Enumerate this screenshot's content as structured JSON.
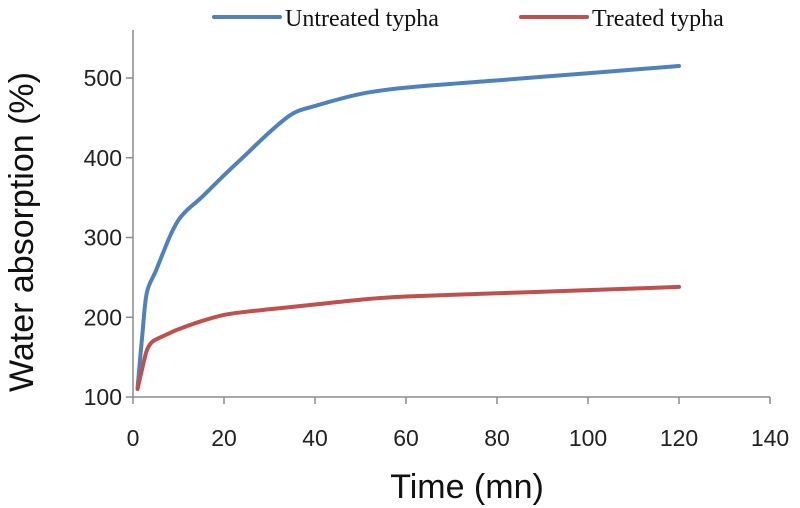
{
  "chart_data": {
    "type": "line",
    "title": "",
    "xlabel": "Time (mn)",
    "ylabel": "Water absorption (%)",
    "xlim": [
      0,
      140
    ],
    "ylim": [
      100,
      550
    ],
    "x_ticks": [
      0,
      20,
      40,
      60,
      80,
      100,
      120,
      140
    ],
    "y_ticks": [
      100,
      200,
      300,
      400,
      500
    ],
    "grid": false,
    "legend_position": "top",
    "series": [
      {
        "name": "Untreated typha",
        "color": "#4f81bd",
        "x": [
          1,
          2,
          3,
          5,
          8,
          10,
          12,
          15,
          20,
          25,
          30,
          35,
          40,
          50,
          60,
          80,
          100,
          120
        ],
        "values": [
          112,
          175,
          230,
          258,
          300,
          322,
          335,
          350,
          378,
          405,
          432,
          455,
          465,
          480,
          488,
          497,
          506,
          515
        ]
      },
      {
        "name": "Treated typha",
        "color": "#c0504d",
        "x": [
          1,
          2,
          3,
          4,
          5,
          8,
          10,
          15,
          20,
          25,
          30,
          40,
          50,
          60,
          80,
          100,
          120
        ],
        "values": [
          110,
          135,
          158,
          168,
          172,
          180,
          185,
          195,
          203,
          207,
          210,
          216,
          222,
          226,
          230,
          234,
          238
        ]
      }
    ]
  }
}
